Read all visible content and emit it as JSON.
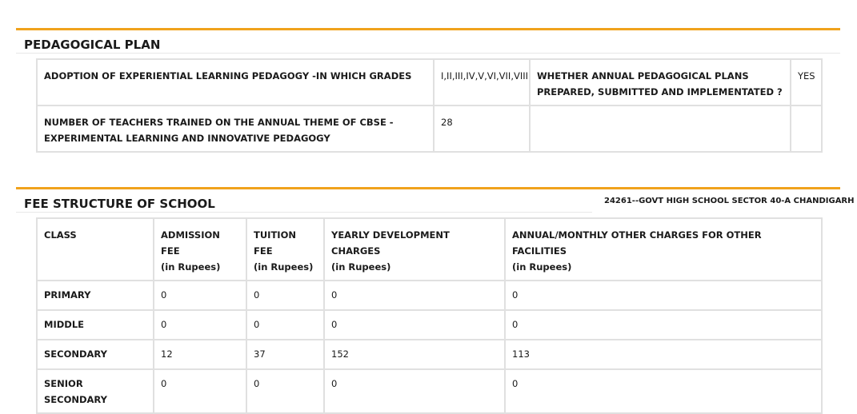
{
  "pedagogical_plan": {
    "title": "PEDAGOGICAL PLAN",
    "rows": [
      [
        "ADOPTION OF EXPERIENTIAL LEARNING PEDAGOGY -IN WHICH GRADES",
        "I,II,III,IV,V,VI,VII,VIII",
        "WHETHER ANNUAL PEDAGOGICAL PLANS PREPARED, SUBMITTED AND IMPLEMENTATED ?",
        "YES"
      ],
      [
        "NUMBER OF TEACHERS TRAINED ON THE ANNUAL THEME OF CBSE - EXPERIMENTAL LEARNING AND INNOVATIVE PEDAGOGY",
        "28"
      ]
    ]
  },
  "fee_structure": {
    "title": "FEE STRUCTURE OF SCHOOL",
    "school": "24261--GOVT HIGH SCHOOL SECTOR 40-A CHANDIGARH",
    "header": [
      {
        "label": "CLASS"
      },
      {
        "label": "ADMISSION FEE",
        "unit": "(in Rupees)"
      },
      {
        "label": "TUITION FEE",
        "unit": "(in Rupees)"
      },
      {
        "label": "YEARLY DEVELOPMENT CHARGES",
        "unit": "(in Rupees)"
      },
      {
        "label": "ANNUAL/MONTHLY OTHER CHARGES FOR OTHER FACILITIES",
        "unit": "(in Rupees)"
      }
    ],
    "rows": [
      [
        "PRIMARY",
        0,
        0,
        0,
        0
      ],
      [
        "MIDDLE",
        0,
        0,
        0,
        0
      ],
      [
        "SECONDARY",
        12,
        37,
        152,
        113
      ],
      [
        "SENIOR SECONDARY",
        0,
        0,
        0,
        0
      ]
    ]
  }
}
